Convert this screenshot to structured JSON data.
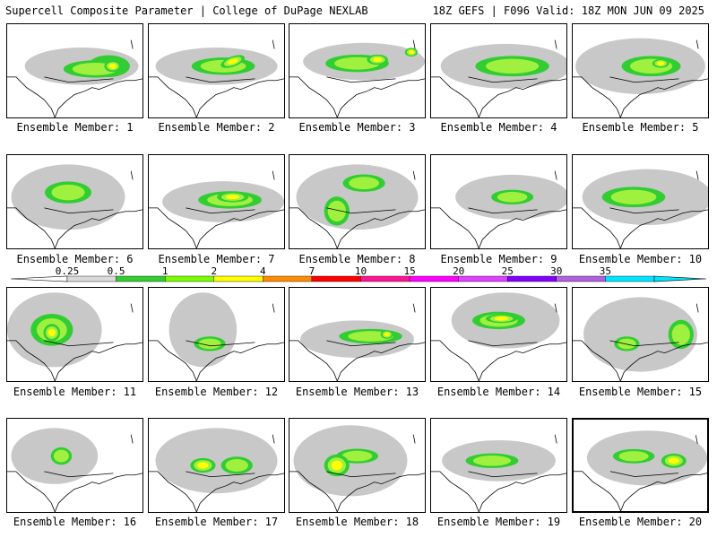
{
  "header": {
    "title": "Supercell Composite Parameter | College of DuPage NEXLAB",
    "run_info": "18Z GEFS | F096 Valid: 18Z MON JUN 09 2025"
  },
  "colors": {
    "lv1": "#c8c8c8",
    "lv2": "#32cd32",
    "lv3": "#a0f040",
    "lv4": "#ffff00",
    "lv5": "#ff8c00",
    "lv6": "#ff0000",
    "lv7": "#ff1493",
    "lv8": "#ff00ff",
    "lv9": "#8000ff",
    "coast": "#000000"
  },
  "legend": {
    "levels": [
      "0.25",
      "0.5",
      "1",
      "2",
      "4",
      "7",
      "10",
      "15",
      "20",
      "25",
      "30",
      "35"
    ],
    "colors": [
      "#d9d9d9",
      "#32cd32",
      "#7cfc00",
      "#ffff00",
      "#ff8c00",
      "#ff0000",
      "#ff1493",
      "#ff00ff",
      "#e040ff",
      "#8000ff",
      "#b060e0",
      "#00e5ff"
    ]
  },
  "members": [
    {
      "label": "Ensemble Member: 1",
      "selected": false,
      "blobs": [
        [
          0.55,
          0.45,
          0.42,
          0.2,
          1,
          0
        ],
        [
          0.75,
          0.45,
          0.2,
          0.15,
          2,
          0
        ],
        [
          0.78,
          0.45,
          0.08,
          0.08,
          4,
          0
        ],
        [
          0.65,
          0.48,
          0.3,
          0.12,
          3,
          0
        ]
      ]
    },
    {
      "label": "Ensemble Member: 2",
      "selected": false,
      "blobs": [
        [
          0.5,
          0.45,
          0.45,
          0.2,
          1,
          0
        ],
        [
          0.55,
          0.45,
          0.3,
          0.12,
          3,
          0
        ],
        [
          0.62,
          0.4,
          0.12,
          0.07,
          4,
          -20
        ]
      ]
    },
    {
      "label": "Ensemble Member: 3",
      "selected": false,
      "blobs": [
        [
          0.55,
          0.4,
          0.45,
          0.2,
          1,
          0
        ],
        [
          0.5,
          0.42,
          0.3,
          0.12,
          3,
          0
        ],
        [
          0.65,
          0.38,
          0.1,
          0.07,
          4,
          0
        ],
        [
          0.9,
          0.3,
          0.06,
          0.06,
          4,
          0
        ]
      ]
    },
    {
      "label": "Ensemble Member: 4",
      "selected": false,
      "blobs": [
        [
          0.55,
          0.45,
          0.48,
          0.24,
          1,
          0
        ],
        [
          0.6,
          0.45,
          0.35,
          0.14,
          3,
          0
        ]
      ]
    },
    {
      "label": "Ensemble Member: 5",
      "selected": false,
      "blobs": [
        [
          0.5,
          0.45,
          0.48,
          0.3,
          1,
          0
        ],
        [
          0.58,
          0.45,
          0.28,
          0.14,
          3,
          0
        ],
        [
          0.65,
          0.42,
          0.08,
          0.06,
          4,
          0
        ]
      ]
    },
    {
      "label": "Ensemble Member: 6",
      "selected": false,
      "blobs": [
        [
          0.45,
          0.45,
          0.42,
          0.35,
          1,
          0
        ],
        [
          0.45,
          0.4,
          0.22,
          0.15,
          3,
          0
        ]
      ]
    },
    {
      "label": "Ensemble Member: 7",
      "selected": false,
      "blobs": [
        [
          0.55,
          0.5,
          0.45,
          0.22,
          1,
          0
        ],
        [
          0.6,
          0.48,
          0.3,
          0.12,
          3,
          0
        ],
        [
          0.62,
          0.45,
          0.15,
          0.07,
          4,
          0
        ]
      ]
    },
    {
      "label": "Ensemble Member: 8",
      "selected": false,
      "blobs": [
        [
          0.5,
          0.45,
          0.45,
          0.35,
          1,
          0
        ],
        [
          0.35,
          0.6,
          0.12,
          0.2,
          3,
          0
        ],
        [
          0.55,
          0.3,
          0.2,
          0.12,
          3,
          0
        ]
      ]
    },
    {
      "label": "Ensemble Member: 9",
      "selected": false,
      "blobs": [
        [
          0.6,
          0.45,
          0.42,
          0.24,
          1,
          0
        ],
        [
          0.6,
          0.45,
          0.2,
          0.1,
          3,
          0
        ]
      ]
    },
    {
      "label": "Ensemble Member: 10",
      "selected": false,
      "blobs": [
        [
          0.55,
          0.45,
          0.48,
          0.3,
          1,
          0
        ],
        [
          0.45,
          0.45,
          0.3,
          0.14,
          3,
          0
        ]
      ]
    },
    {
      "label": "Ensemble Member: 11",
      "selected": false,
      "blobs": [
        [
          0.35,
          0.45,
          0.35,
          0.4,
          1,
          0
        ],
        [
          0.33,
          0.45,
          0.2,
          0.22,
          3,
          0
        ],
        [
          0.33,
          0.48,
          0.08,
          0.12,
          4,
          0
        ]
      ]
    },
    {
      "label": "Ensemble Member: 12",
      "selected": false,
      "blobs": [
        [
          0.4,
          0.45,
          0.25,
          0.4,
          1,
          0
        ],
        [
          0.7,
          0.55,
          0.3,
          0.15,
          1,
          0
        ],
        [
          0.45,
          0.6,
          0.15,
          0.1,
          3,
          0
        ]
      ]
    },
    {
      "label": "Ensemble Member: 13",
      "selected": false,
      "blobs": [
        [
          0.5,
          0.55,
          0.42,
          0.2,
          1,
          0
        ],
        [
          0.6,
          0.52,
          0.3,
          0.1,
          3,
          0
        ],
        [
          0.72,
          0.5,
          0.06,
          0.06,
          4,
          0
        ]
      ]
    },
    {
      "label": "Ensemble Member: 14",
      "selected": false,
      "blobs": [
        [
          0.55,
          0.35,
          0.4,
          0.3,
          1,
          0
        ],
        [
          0.5,
          0.35,
          0.25,
          0.12,
          3,
          0
        ],
        [
          0.52,
          0.33,
          0.15,
          0.06,
          4,
          0
        ]
      ]
    },
    {
      "label": "Ensemble Member: 15",
      "selected": false,
      "blobs": [
        [
          0.5,
          0.5,
          0.42,
          0.4,
          1,
          0
        ],
        [
          0.4,
          0.6,
          0.12,
          0.1,
          3,
          0
        ],
        [
          0.8,
          0.5,
          0.12,
          0.2,
          3,
          0
        ]
      ]
    },
    {
      "label": "Ensemble Member: 16",
      "selected": false,
      "blobs": [
        [
          0.35,
          0.4,
          0.32,
          0.3,
          1,
          0
        ],
        [
          0.4,
          0.4,
          0.1,
          0.12,
          3,
          0
        ]
      ]
    },
    {
      "label": "Ensemble Member: 17",
      "selected": false,
      "blobs": [
        [
          0.5,
          0.45,
          0.45,
          0.35,
          1,
          0
        ],
        [
          0.4,
          0.5,
          0.12,
          0.1,
          4,
          0
        ],
        [
          0.65,
          0.5,
          0.15,
          0.12,
          3,
          0
        ]
      ]
    },
    {
      "label": "Ensemble Member: 18",
      "selected": false,
      "blobs": [
        [
          0.45,
          0.45,
          0.42,
          0.38,
          1,
          0
        ],
        [
          0.35,
          0.5,
          0.12,
          0.15,
          4,
          0
        ],
        [
          0.5,
          0.4,
          0.2,
          0.1,
          3,
          0
        ]
      ]
    },
    {
      "label": "Ensemble Member: 19",
      "selected": false,
      "blobs": [
        [
          0.5,
          0.45,
          0.42,
          0.22,
          1,
          0
        ],
        [
          0.45,
          0.45,
          0.25,
          0.1,
          3,
          0
        ]
      ]
    },
    {
      "label": "Ensemble Member: 20",
      "selected": true,
      "blobs": [
        [
          0.55,
          0.42,
          0.45,
          0.3,
          1,
          0
        ],
        [
          0.45,
          0.4,
          0.2,
          0.1,
          3,
          0
        ],
        [
          0.75,
          0.45,
          0.12,
          0.1,
          4,
          0
        ]
      ]
    }
  ]
}
